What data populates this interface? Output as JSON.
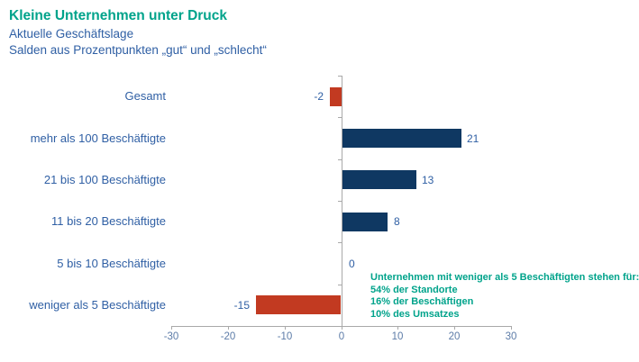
{
  "chart_data": {
    "type": "bar",
    "orientation": "horizontal",
    "title": "Kleine Unternehmen unter Druck",
    "subtitle1": "Aktuelle Geschäftslage",
    "subtitle2": "Salden aus Prozentpunkten „gut“ und „schlecht“",
    "categories": [
      "Gesamt",
      "mehr als 100 Beschäftigte",
      "21 bis 100 Beschäftigte",
      "11 bis 20 Beschäftigte",
      "5 bis 10 Beschäftigte",
      "weniger als 5 Beschäftigte"
    ],
    "values": [
      -2,
      21,
      13,
      8,
      0,
      -15
    ],
    "xlim": [
      -30,
      30
    ],
    "xticks": [
      -30,
      -20,
      -10,
      0,
      10,
      20,
      30
    ],
    "grid": false,
    "legend": "none",
    "annotation": {
      "lines": [
        "Unternehmen mit weniger als 5 Beschäftigten stehen für:",
        "54% der Standorte",
        "16% der Beschäftigen",
        "10% des Umsatzes"
      ]
    },
    "colors": {
      "title": "#00a38b",
      "text_blue": "#2f5fa4",
      "bar_positive": "#0f3862",
      "bar_negative": "#c23a21",
      "axis": "#a9a9a9",
      "tick_label": "#5d7ca8"
    }
  }
}
